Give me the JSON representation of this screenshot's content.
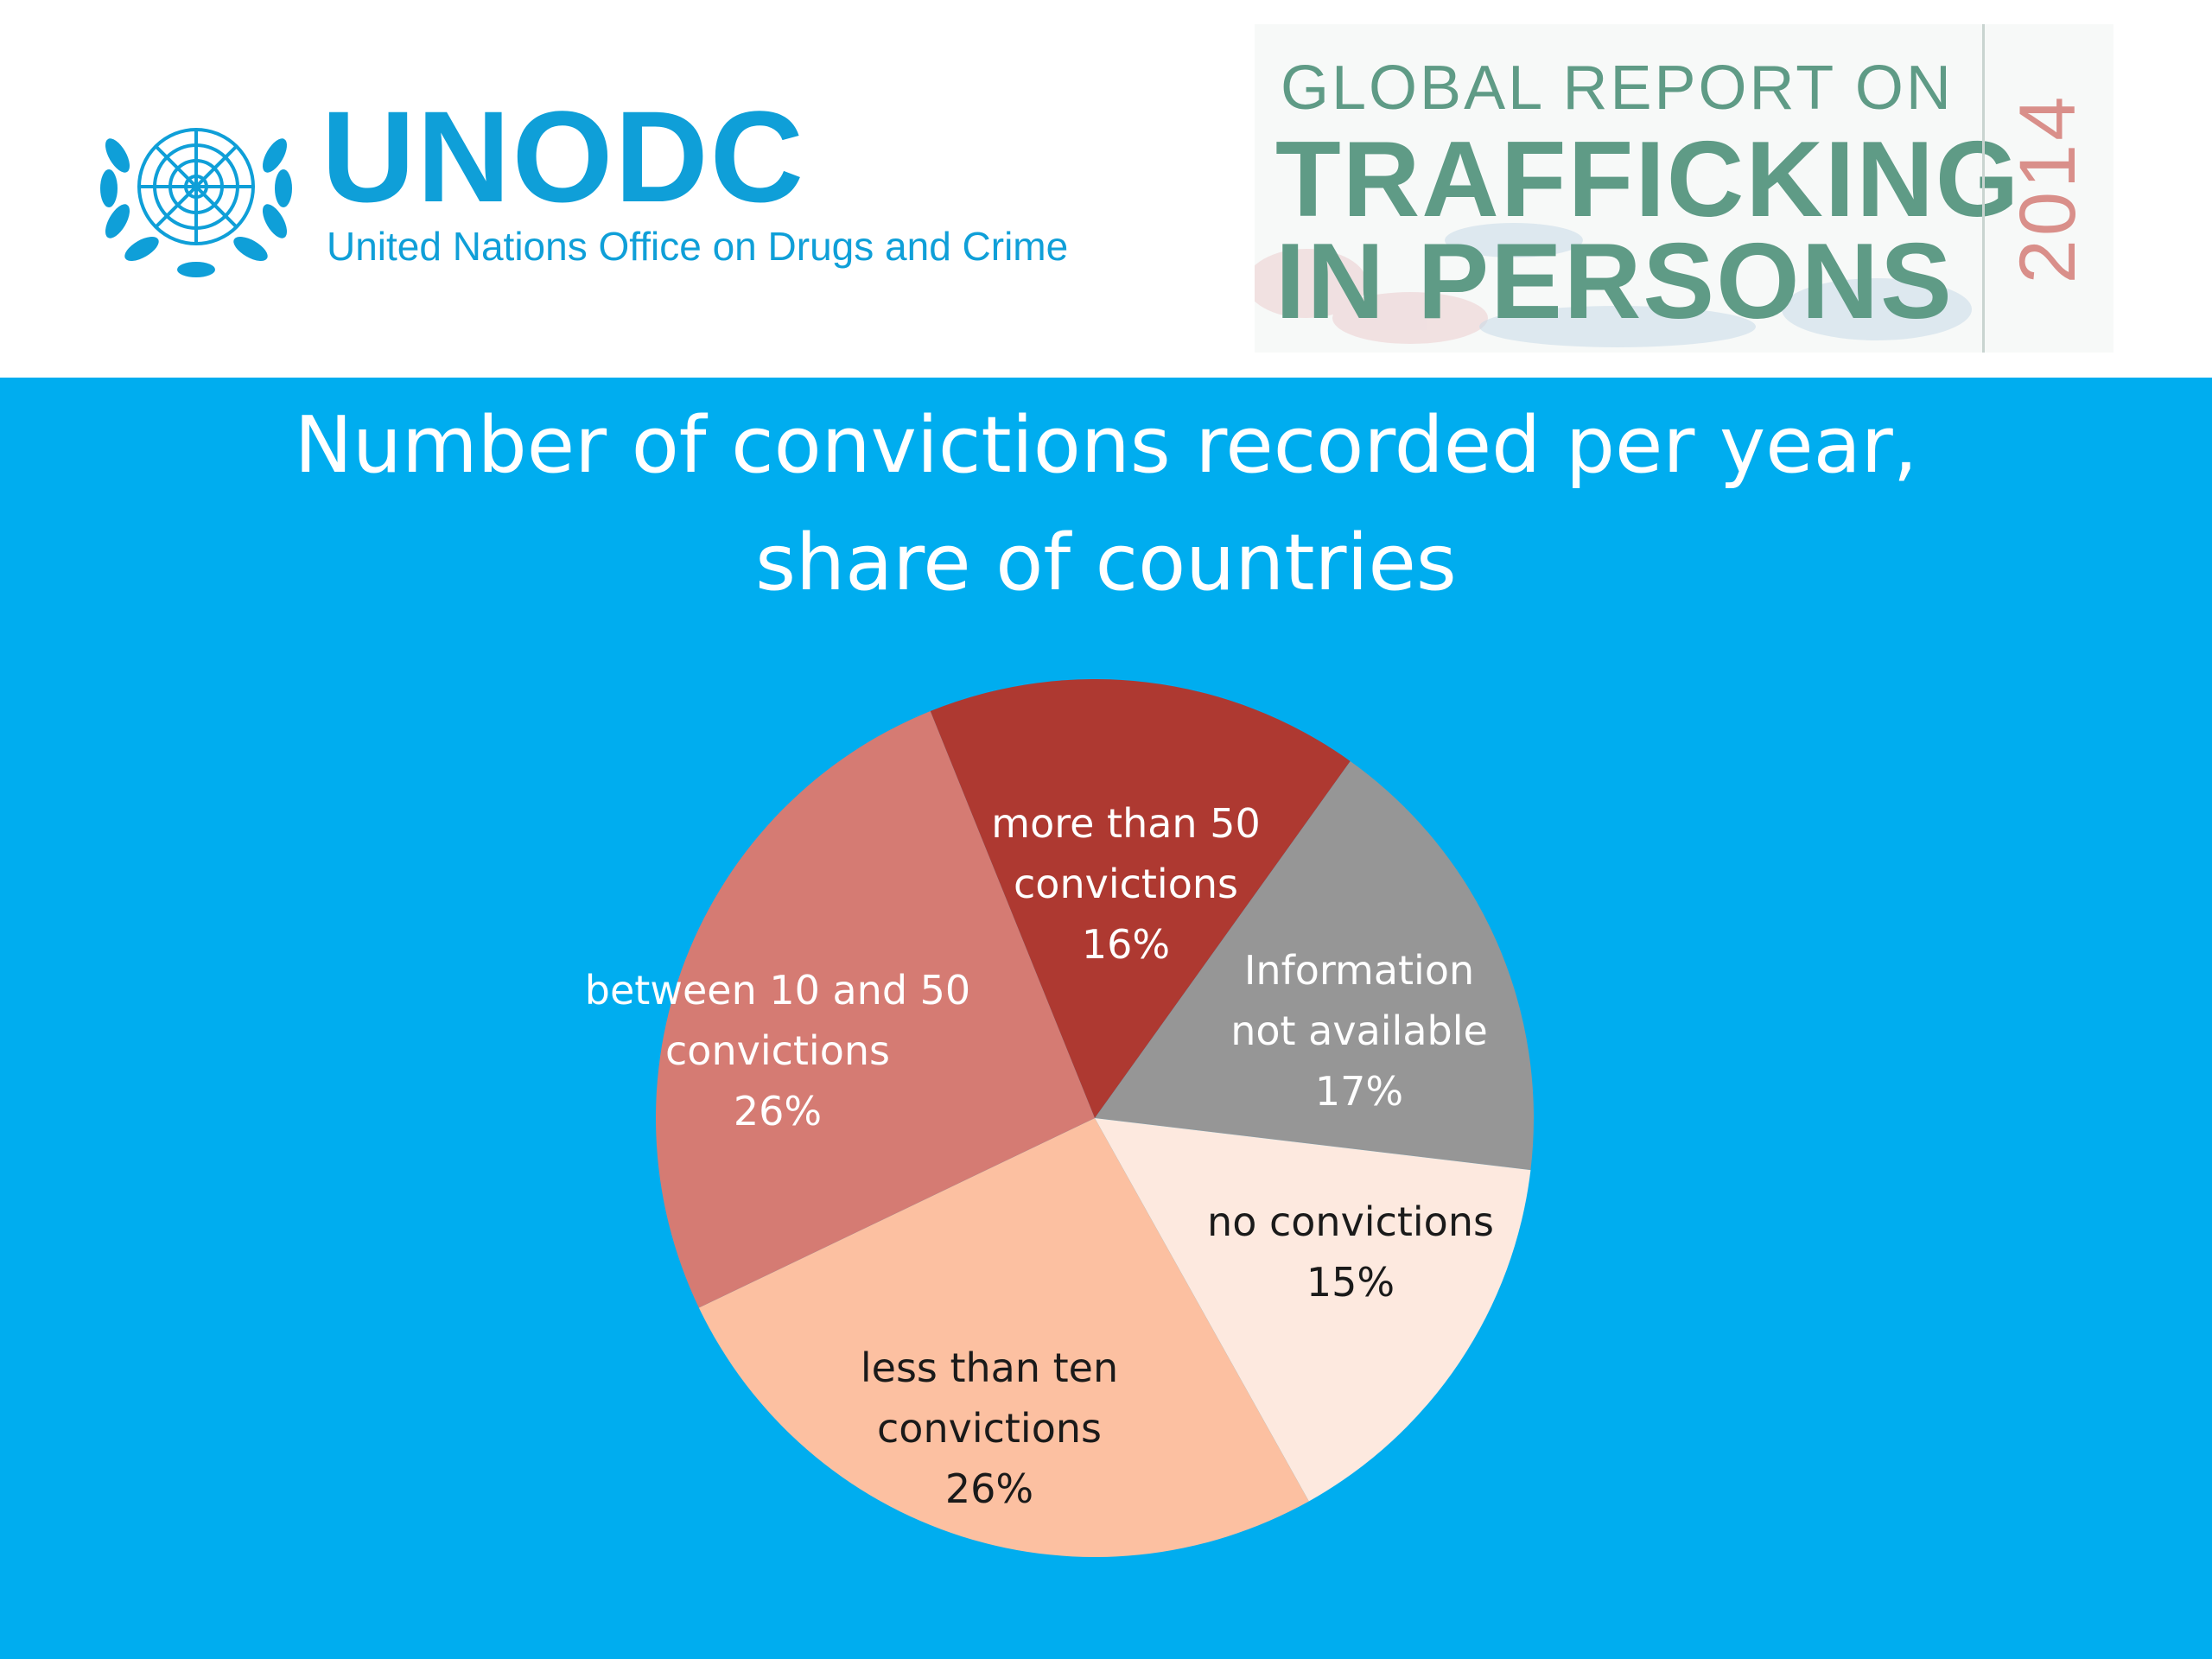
{
  "header": {
    "org_acronym": "UNODC",
    "org_name": "United Nations Office on Drugs and Crime",
    "emblem_icon": "un-emblem-icon",
    "brand_color": "#0f9fd8",
    "report": {
      "line1": "GLOBAL REPORT ON",
      "line2": "TRAFFICKING",
      "line3": "IN PERSONS",
      "year": "2014",
      "text_color": "#5f9b86",
      "year_color": "#d98f8a"
    }
  },
  "background_color": "#00adef",
  "chart_data": {
    "type": "pie",
    "title": [
      "Number of convictions recorded per year,",
      "share of countries"
    ],
    "start_angle_deg": -22,
    "direction": "clockwise",
    "legend": "none",
    "slices": [
      {
        "label": [
          "more than 50",
          "convictions"
        ],
        "value": 16,
        "display": "16%",
        "color": "#ae3931",
        "text_color": "#ffffff"
      },
      {
        "label": [
          "Information",
          "not available"
        ],
        "value": 17,
        "display": "17%",
        "color": "#969696",
        "text_color": "#ffffff"
      },
      {
        "label": [
          "no convictions"
        ],
        "value": 15,
        "display": "15%",
        "color": "#fde9df",
        "text_color": "#1a1a1a"
      },
      {
        "label": [
          "less than ten",
          "convictions"
        ],
        "value": 26,
        "display": "26%",
        "color": "#fcc0a1",
        "text_color": "#1a1a1a"
      },
      {
        "label": [
          "between 10 and 50",
          "convictions"
        ],
        "value": 26,
        "display": "26%",
        "color": "#d57b73",
        "text_color": "#ffffff"
      }
    ]
  }
}
